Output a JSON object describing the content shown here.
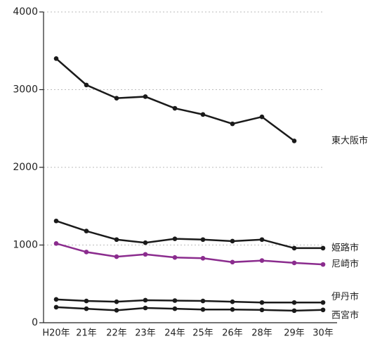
{
  "chart_data": {
    "type": "line",
    "categories": [
      "H20年",
      "21年",
      "22年",
      "23年",
      "24年",
      "25年",
      "26年",
      "28年",
      "29年",
      "30年"
    ],
    "series": [
      {
        "name": "東大阪市",
        "color": "#1a1a1a",
        "values": [
          3400,
          3060,
          2890,
          2910,
          2760,
          2680,
          2560,
          2650,
          2340,
          null
        ]
      },
      {
        "name": "姫路市",
        "color": "#1a1a1a",
        "values": [
          1310,
          1180,
          1070,
          1030,
          1080,
          1070,
          1050,
          1070,
          960,
          960
        ]
      },
      {
        "name": "尼崎市",
        "color": "#8b2c8e",
        "values": [
          1020,
          910,
          850,
          880,
          840,
          830,
          780,
          800,
          770,
          750
        ]
      },
      {
        "name": "伊丹市",
        "color": "#1a1a1a",
        "values": [
          300,
          280,
          270,
          290,
          285,
          280,
          270,
          260,
          260,
          260
        ]
      },
      {
        "name": "西宮市",
        "color": "#1a1a1a",
        "values": [
          200,
          180,
          160,
          190,
          180,
          170,
          170,
          165,
          155,
          165
        ]
      }
    ],
    "ylim": [
      0,
      4000
    ],
    "yticks": [
      0,
      1000,
      2000,
      3000,
      4000
    ],
    "grid": true
  }
}
